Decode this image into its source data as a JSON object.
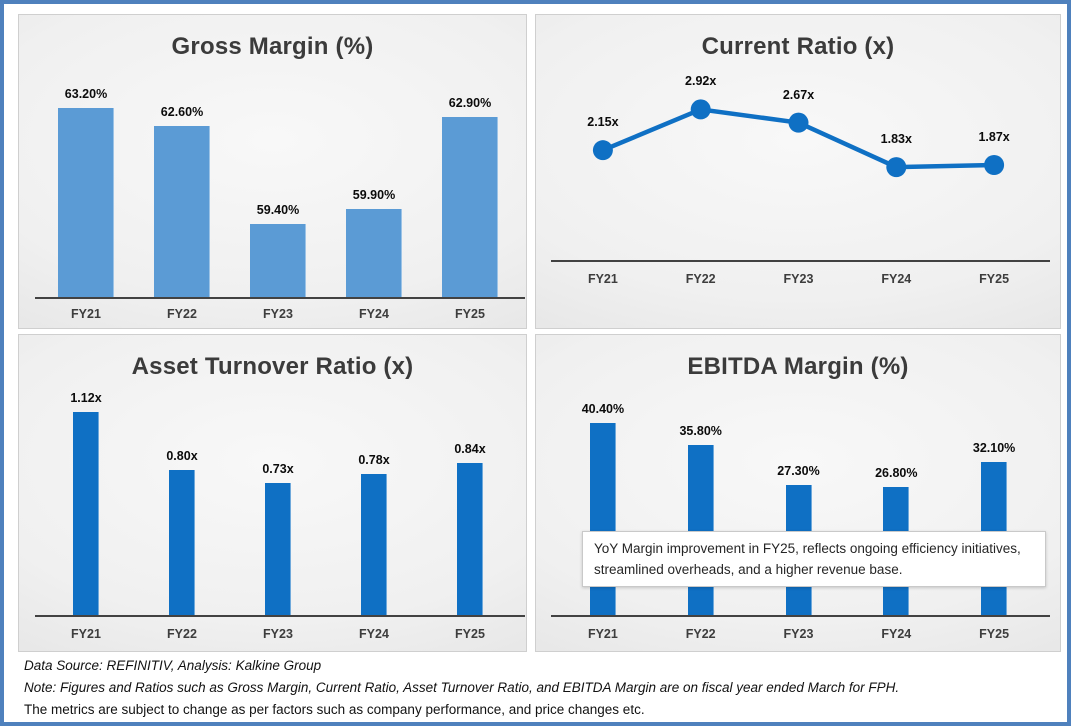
{
  "page": {
    "border_color": "#4F81BD",
    "panel_background": "#ececec"
  },
  "chart_data": [
    {
      "type": "bar",
      "title": "Gross Margin (%)",
      "categories": [
        "FY21",
        "FY22",
        "FY23",
        "FY24",
        "FY25"
      ],
      "values": [
        63.2,
        62.6,
        59.4,
        59.9,
        62.9
      ],
      "labels": [
        "63.20%",
        "62.60%",
        "59.40%",
        "59.90%",
        "62.90%"
      ],
      "ylim": [
        57,
        63.4
      ],
      "color": "#5B9BD5",
      "grid": false,
      "legend": "none",
      "xlabel": "",
      "ylabel": ""
    },
    {
      "type": "line",
      "title": "Current Ratio (x)",
      "categories": [
        "FY21",
        "FY22",
        "FY23",
        "FY24",
        "FY25"
      ],
      "values": [
        2.15,
        2.92,
        2.67,
        1.83,
        1.87
      ],
      "labels": [
        "2.15x",
        "2.92x",
        "2.67x",
        "1.83x",
        "1.87x"
      ],
      "ylim": [
        0,
        3.4
      ],
      "color": "#0F70C4",
      "grid": false,
      "legend": "none",
      "xlabel": "",
      "ylabel": ""
    },
    {
      "type": "bar",
      "title": "Asset Turnover Ratio (x)",
      "categories": [
        "FY21",
        "FY22",
        "FY23",
        "FY24",
        "FY25"
      ],
      "values": [
        1.12,
        0.8,
        0.73,
        0.78,
        0.84
      ],
      "labels": [
        "1.12x",
        "0.80x",
        "0.73x",
        "0.78x",
        "0.84x"
      ],
      "ylim": [
        0,
        1.15
      ],
      "color": "#0F70C4",
      "grid": false,
      "legend": "none",
      "xlabel": "",
      "ylabel": ""
    },
    {
      "type": "bar",
      "title": "EBITDA Margin (%)",
      "categories": [
        "FY21",
        "FY22",
        "FY23",
        "FY24",
        "FY25"
      ],
      "values": [
        40.4,
        35.8,
        27.3,
        26.8,
        32.1
      ],
      "labels": [
        "40.40%",
        "35.80%",
        "27.30%",
        "26.80%",
        "32.10%"
      ],
      "ylim": [
        0,
        42
      ],
      "color": "#0F70C4",
      "grid": false,
      "legend": "none",
      "xlabel": "",
      "ylabel": "",
      "annotation": "YoY Margin improvement in FY25, reflects ongoing efficiency initiatives, streamlined overheads, and a higher revenue base."
    }
  ],
  "footer": {
    "source": "Data Source: REFINITIV, Analysis: Kalkine Group",
    "note": "Note: Figures and Ratios such as Gross Margin, Current Ratio, Asset Turnover Ratio, and EBITDA Margin are on fiscal year ended March for FPH.",
    "disclaimer": "The metrics are subject to change as per factors such as company performance, and price changes etc."
  }
}
